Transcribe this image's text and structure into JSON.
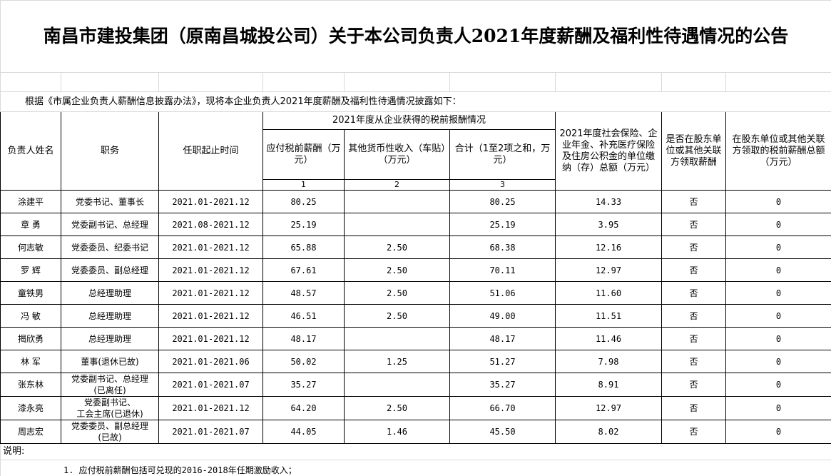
{
  "title": "南昌市建投集团（原南昌城投公司）关于本公司负责人2021年度薪酬及福利性待遇情况的公告",
  "intro": "根据《市属企业负责人薪酬信息披露办法》，现将本企业负责人2021年度薪酬及福利性待遇情况披露如下：",
  "header": {
    "name": "负责人姓名",
    "position": "职务",
    "term": "任职起止时间",
    "group": "2021年度从企业获得的税前报酬情况",
    "col1": "应付税前薪酬（万元）",
    "col2": "其他货币性收入（车贴）（万元）",
    "col3": "合计（1至2项之和，万元）",
    "num1": "1",
    "num2": "2",
    "num3": "3",
    "col4": "2021年度社会保险、企业年金、补充医疗保险及住房公积金的单位缴纳（存）总额（万元）",
    "col5": "是否在股东单位或其他关联方领取薪酬",
    "col6": "在股东单位或其他关联方领取的税前薪酬总额（万元）"
  },
  "table": {
    "rows": [
      [
        "涂建平",
        "党委书记、董事长",
        "2021.01-2021.12",
        "80.25",
        null,
        "80.25",
        "14.33",
        "否",
        "0"
      ],
      [
        "章  勇",
        "党委副书记、总经理",
        "2021.08-2021.12",
        "25.19",
        null,
        "25.19",
        "3.95",
        "否",
        "0"
      ],
      [
        "何志敏",
        "党委委员、纪委书记",
        "2021.01-2021.12",
        "65.88",
        "2.50",
        "68.38",
        "12.16",
        "否",
        "0"
      ],
      [
        "罗  辉",
        "党委委员、副总经理",
        "2021.01-2021.12",
        "67.61",
        "2.50",
        "70.11",
        "12.97",
        "否",
        "0"
      ],
      [
        "童铁男",
        "总经理助理",
        "2021.01-2021.12",
        "48.57",
        "2.50",
        "51.06",
        "11.60",
        "否",
        "0"
      ],
      [
        "冯  敏",
        "总经理助理",
        "2021.01-2021.12",
        "46.51",
        "2.50",
        "49.00",
        "11.51",
        "否",
        "0"
      ],
      [
        "揭欣勇",
        "总经理助理",
        "2021.01-2021.12",
        "48.17",
        null,
        "48.17",
        "11.46",
        "否",
        "0"
      ],
      [
        "林  军",
        "董事(退休已故)",
        "2021.01-2021.06",
        "50.02",
        "1.25",
        "51.27",
        "7.98",
        "否",
        "0"
      ],
      [
        "张东林",
        "党委副书记、总经理\n(已离任)",
        "2021.01-2021.07",
        "35.27",
        null,
        "35.27",
        "8.91",
        "否",
        "0"
      ],
      [
        "漆永亮",
        "党委副书记、\n工会主席(已退休)",
        "2021.01-2021.12",
        "64.20",
        "2.50",
        "66.70",
        "12.97",
        "否",
        "0"
      ],
      [
        "周志宏",
        "党委委员、副总经理\n(已故)",
        "2021.01-2021.07",
        "44.05",
        "1.46",
        "45.50",
        "8.02",
        "否",
        "0"
      ]
    ]
  },
  "notes_label": "说明:",
  "note": "1. 应付税前薪酬包括可兑现的2016-2018年任期激励收入；"
}
